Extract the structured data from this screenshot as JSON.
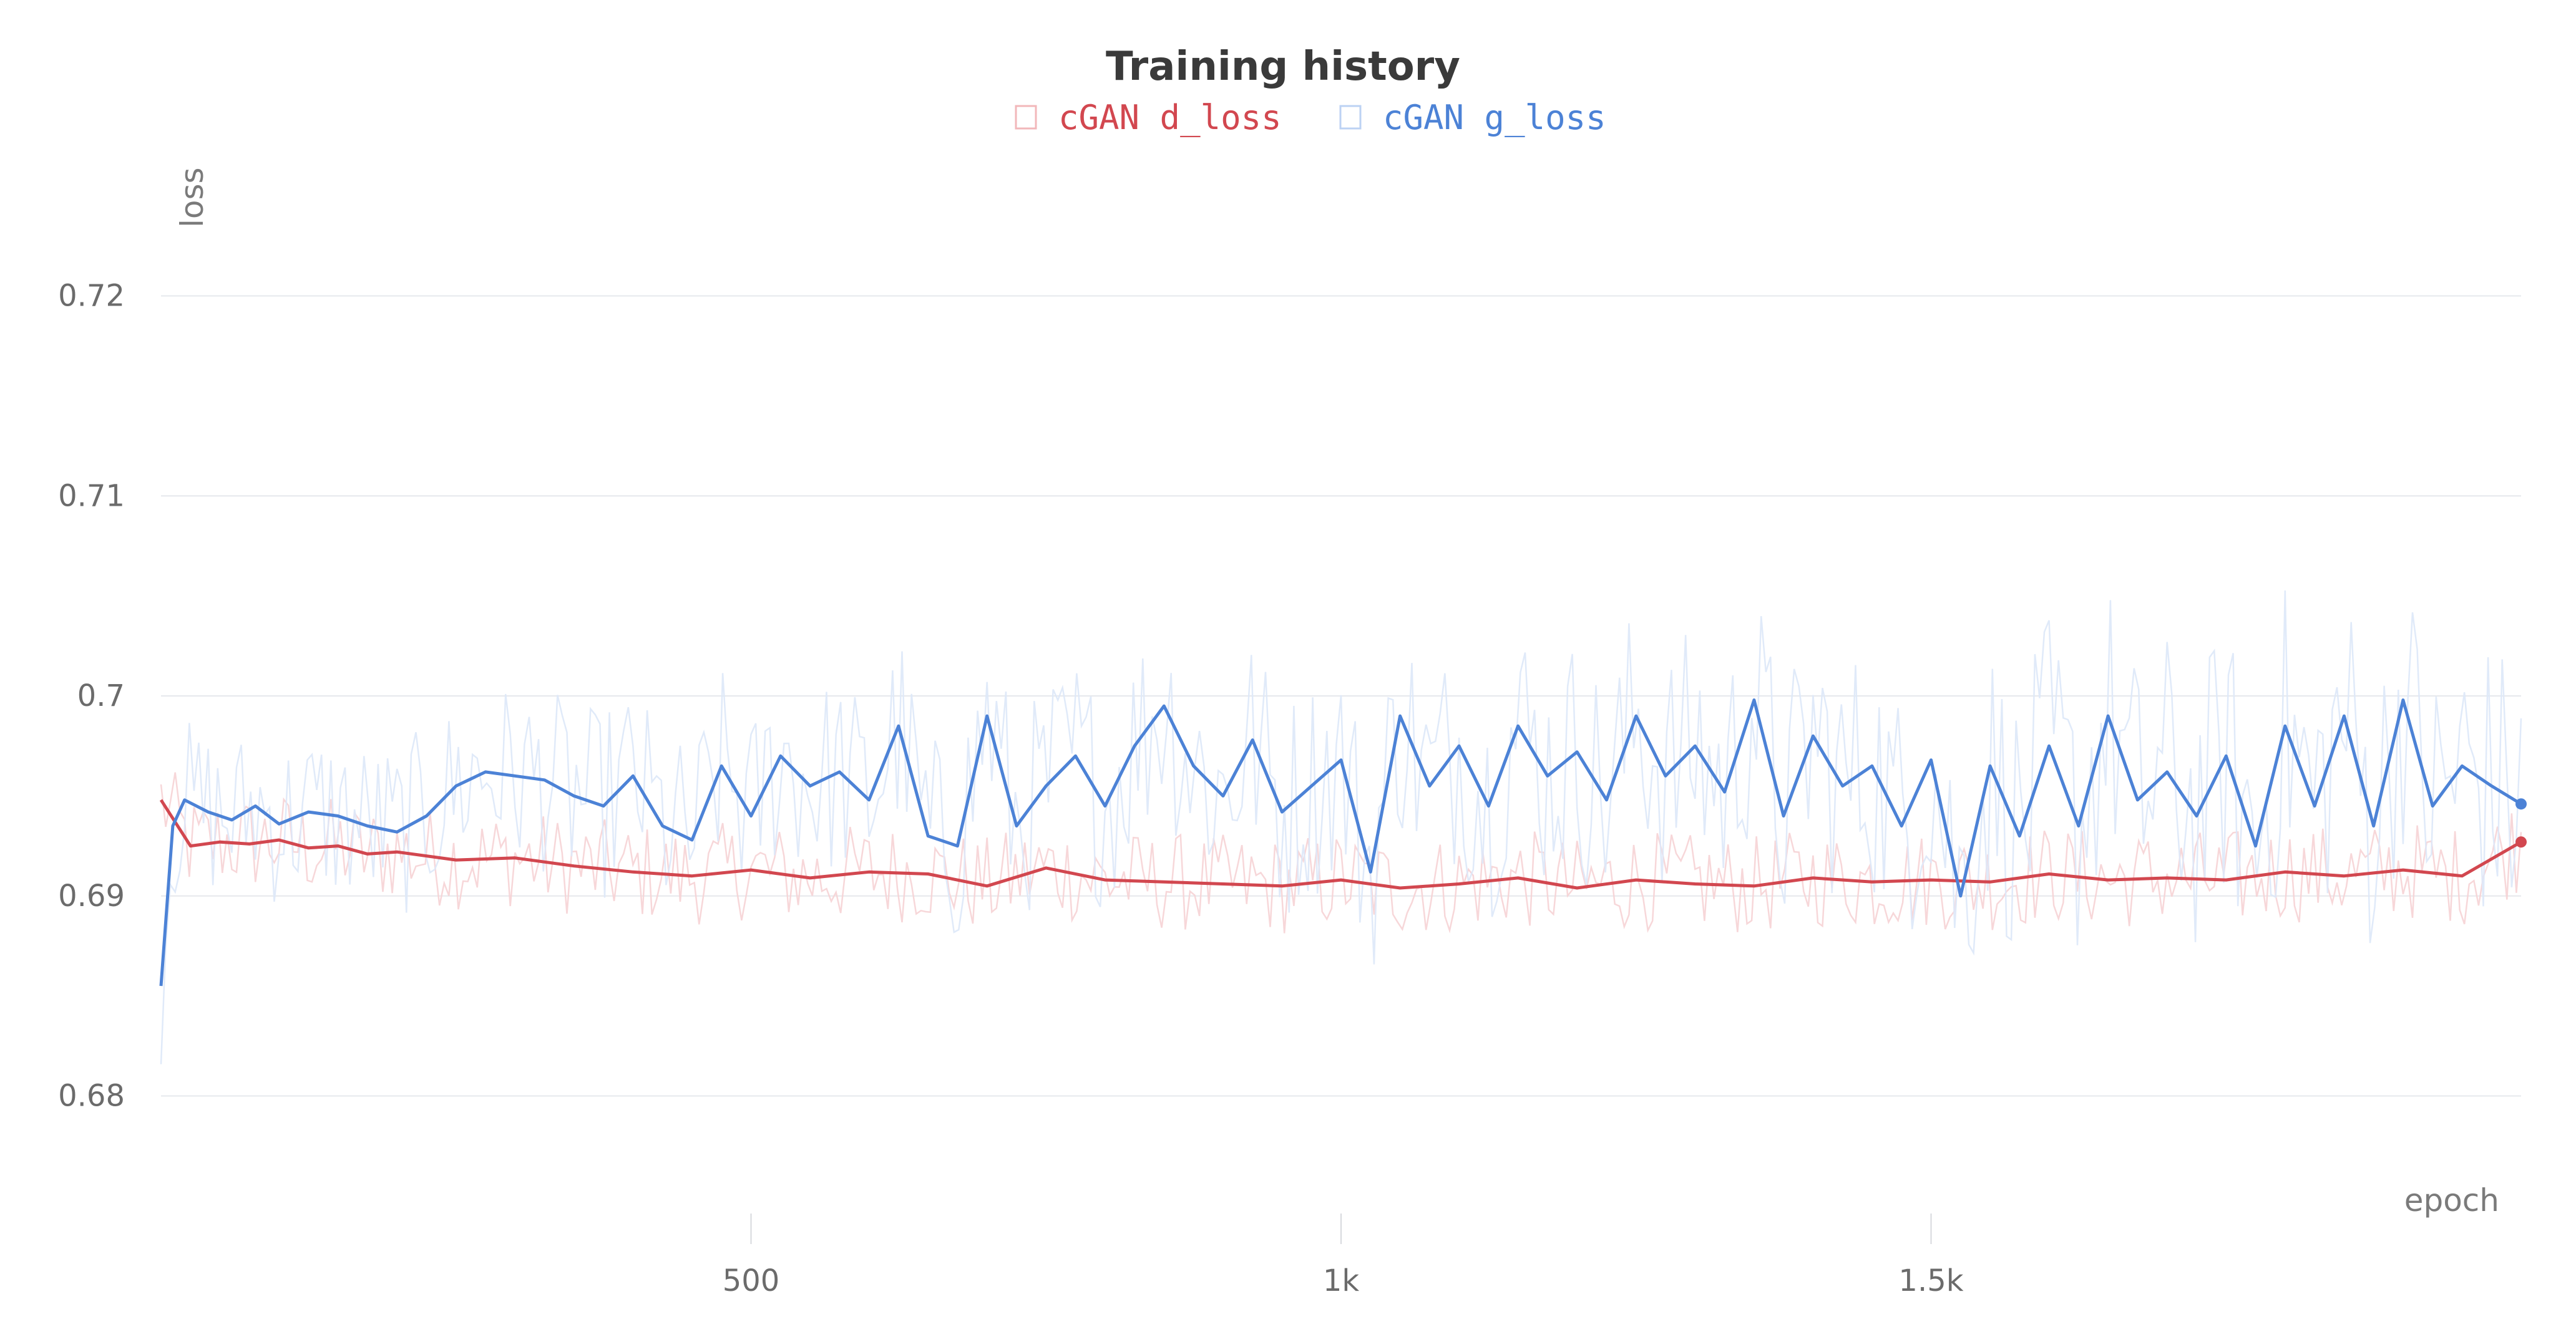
{
  "chart_data": {
    "type": "line",
    "title": "Training history",
    "xlabel": "epoch",
    "ylabel": "loss",
    "xlim": [
      0,
      2000
    ],
    "ylim": [
      0.674,
      0.727
    ],
    "x_ticks": [
      500,
      1000,
      1500
    ],
    "x_tick_labels": [
      "500",
      "1k",
      "1.5k"
    ],
    "y_ticks": [
      0.68,
      0.69,
      0.7,
      0.71,
      0.72
    ],
    "y_tick_labels": [
      "0.68",
      "0.69",
      "0.7",
      "0.71",
      "0.72"
    ],
    "grid": true,
    "legend_position": "top-center",
    "series": [
      {
        "name": "cGAN d_loss",
        "color": "#d2474f",
        "raw_color": "#f6d3d5",
        "x": [
          0,
          25,
          50,
          75,
          100,
          125,
          150,
          175,
          200,
          250,
          300,
          350,
          400,
          450,
          500,
          550,
          600,
          650,
          700,
          750,
          800,
          850,
          900,
          950,
          1000,
          1050,
          1100,
          1150,
          1200,
          1250,
          1300,
          1350,
          1400,
          1450,
          1500,
          1550,
          1600,
          1650,
          1700,
          1750,
          1800,
          1850,
          1900,
          1950,
          2000
        ],
        "values": [
          0.6948,
          0.6925,
          0.6927,
          0.6926,
          0.6928,
          0.6924,
          0.6925,
          0.6921,
          0.6922,
          0.6918,
          0.6919,
          0.6915,
          0.6912,
          0.691,
          0.6913,
          0.6909,
          0.6912,
          0.6911,
          0.6905,
          0.6914,
          0.6908,
          0.6907,
          0.6906,
          0.6905,
          0.6908,
          0.6904,
          0.6906,
          0.6909,
          0.6904,
          0.6908,
          0.6906,
          0.6905,
          0.6909,
          0.6907,
          0.6908,
          0.6907,
          0.6911,
          0.6908,
          0.6909,
          0.6908,
          0.6912,
          0.691,
          0.6913,
          0.691,
          0.6927
        ]
      },
      {
        "name": "cGAN g_loss",
        "color": "#4c82d6",
        "raw_color": "#dde8f8",
        "x": [
          0,
          10,
          20,
          40,
          60,
          80,
          100,
          125,
          150,
          175,
          200,
          225,
          250,
          275,
          300,
          325,
          350,
          375,
          400,
          425,
          450,
          475,
          500,
          525,
          550,
          575,
          600,
          625,
          650,
          675,
          700,
          725,
          750,
          775,
          800,
          825,
          850,
          875,
          900,
          925,
          950,
          975,
          1000,
          1025,
          1050,
          1075,
          1100,
          1125,
          1150,
          1175,
          1200,
          1225,
          1250,
          1275,
          1300,
          1325,
          1350,
          1375,
          1400,
          1425,
          1450,
          1475,
          1500,
          1525,
          1550,
          1575,
          1600,
          1625,
          1650,
          1675,
          1700,
          1725,
          1750,
          1775,
          1800,
          1825,
          1850,
          1875,
          1900,
          1925,
          1950,
          1975,
          2000
        ],
        "values": [
          0.6855,
          0.6935,
          0.6948,
          0.6942,
          0.6938,
          0.6945,
          0.6936,
          0.6942,
          0.694,
          0.6935,
          0.6932,
          0.694,
          0.6955,
          0.6962,
          0.696,
          0.6958,
          0.695,
          0.6945,
          0.696,
          0.6935,
          0.6928,
          0.6965,
          0.694,
          0.697,
          0.6955,
          0.6962,
          0.6948,
          0.6985,
          0.693,
          0.6925,
          0.699,
          0.6935,
          0.6955,
          0.697,
          0.6945,
          0.6975,
          0.6995,
          0.6965,
          0.695,
          0.6978,
          0.6942,
          0.6955,
          0.6968,
          0.6912,
          0.699,
          0.6955,
          0.6975,
          0.6945,
          0.6985,
          0.696,
          0.6972,
          0.6948,
          0.699,
          0.696,
          0.6975,
          0.6952,
          0.6998,
          0.694,
          0.698,
          0.6955,
          0.6965,
          0.6935,
          0.6968,
          0.69,
          0.6965,
          0.693,
          0.6975,
          0.6935,
          0.699,
          0.6948,
          0.6962,
          0.694,
          0.697,
          0.6925,
          0.6985,
          0.6945,
          0.699,
          0.6935,
          0.6998,
          0.6945,
          0.6965,
          0.6955,
          0.6946
        ]
      }
    ]
  }
}
